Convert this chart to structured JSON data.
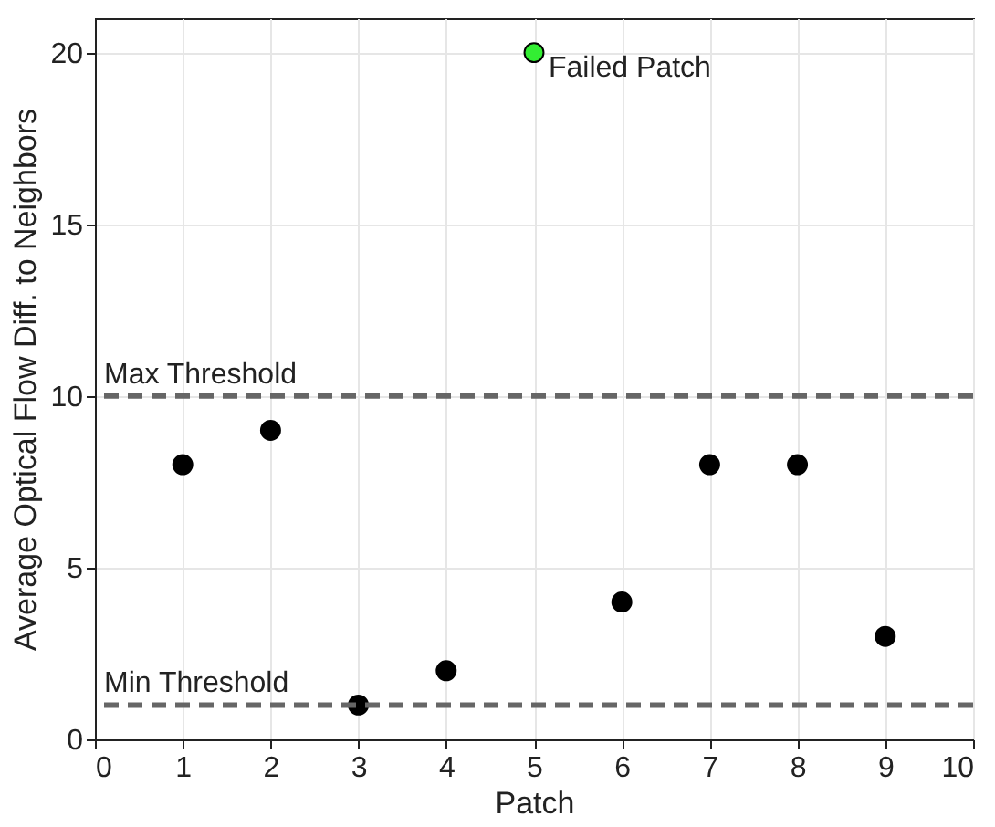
{
  "chart_data": {
    "type": "scatter",
    "xlabel": "Patch",
    "ylabel": "Average Optical Flow Diff. to Neighbors",
    "x": [
      1,
      2,
      3,
      4,
      5,
      6,
      7,
      8,
      9
    ],
    "values": [
      8,
      9,
      1,
      2,
      20,
      4,
      8,
      8,
      3
    ],
    "colors": [
      "#000000",
      "#000000",
      "#000000",
      "#000000",
      "#33ee33",
      "#000000",
      "#000000",
      "#000000",
      "#000000"
    ],
    "marker": "circle",
    "grid": true,
    "xlim": [
      0,
      10
    ],
    "xticks": [
      0,
      1,
      2,
      3,
      4,
      5,
      6,
      7,
      8,
      9,
      10
    ],
    "ylim": [
      0,
      21
    ],
    "yticks": [
      0,
      5,
      10,
      15,
      20
    ],
    "ref_lines": [
      {
        "axis": "y",
        "value": 10,
        "label": "Max Threshold",
        "color": "#666666",
        "line_style": "dashed"
      },
      {
        "axis": "y",
        "value": 1,
        "label": "Min Threshold",
        "color": "#666666",
        "line_style": "dashed"
      }
    ],
    "annotations": [
      {
        "text": "Failed Patch",
        "x": 5,
        "y": 20
      }
    ]
  }
}
